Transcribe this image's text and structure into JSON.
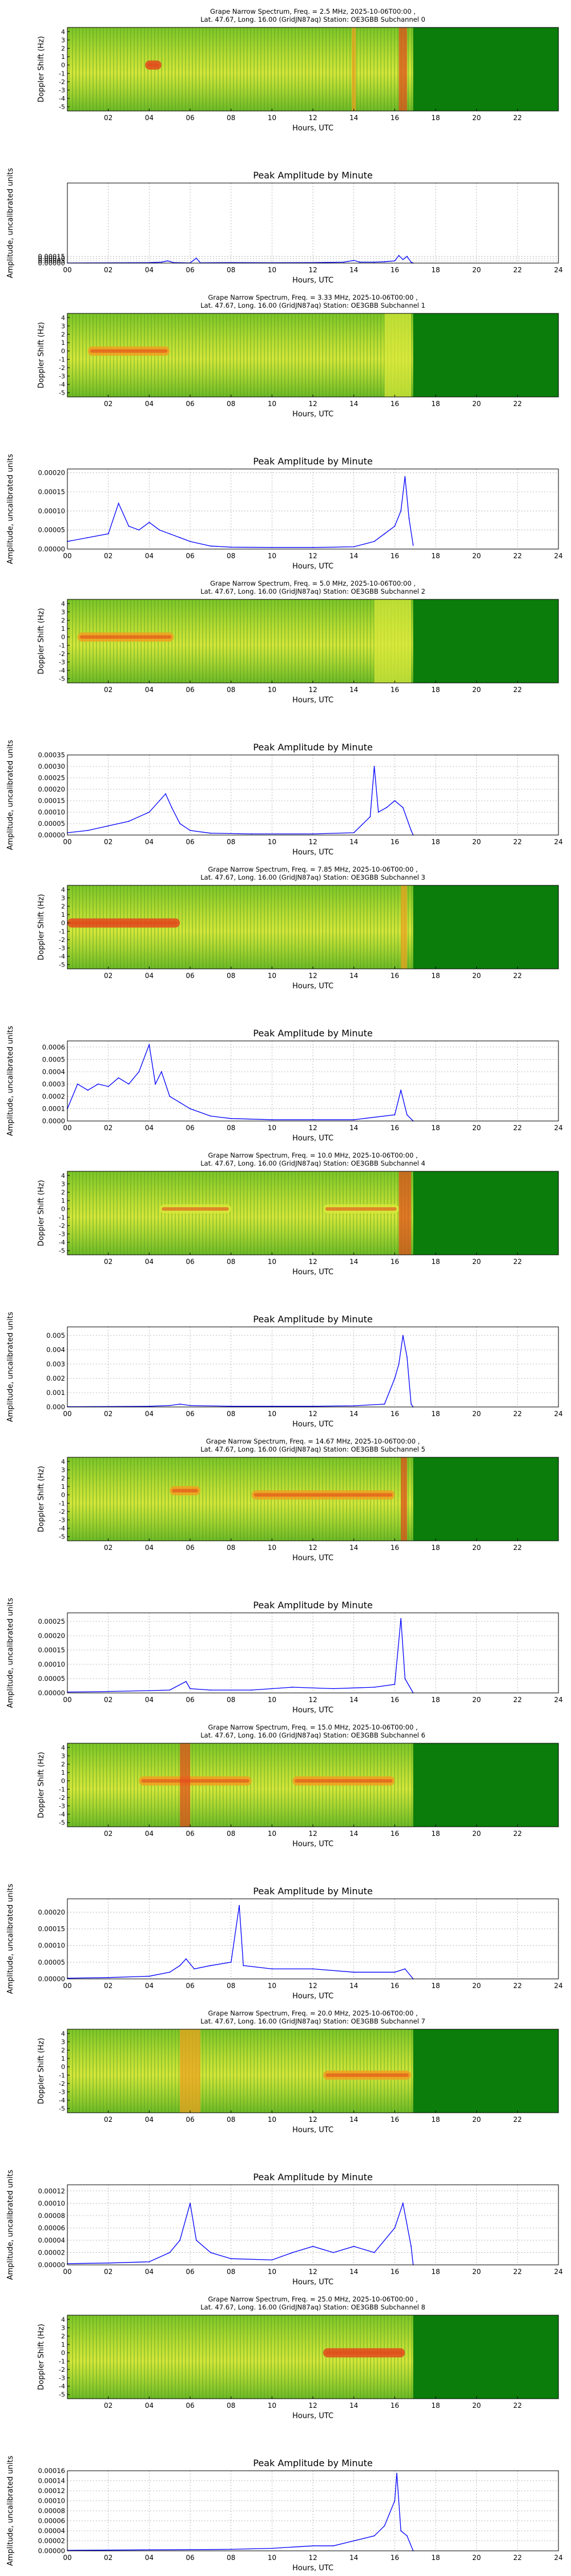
{
  "spectrum_common": {
    "ylabel": "Doppler Shift (Hz)",
    "xlabel": "Hours, UTC",
    "yticks": [
      "4",
      "3",
      "2",
      "1",
      "0",
      "-1",
      "-2",
      "-3",
      "-4",
      "-5"
    ],
    "xticks": [
      "02",
      "04",
      "06",
      "08",
      "10",
      "12",
      "14",
      "16",
      "18",
      "20",
      "22"
    ],
    "colors": {
      "background": "#0a7d0a",
      "low": "#6fbf2a",
      "mid": "#d9e83a",
      "high": "#f0a020",
      "peak": "#e34a1c"
    }
  },
  "amplitude_common": {
    "title": "Peak Amplitude by Minute",
    "ylabel": "Amplitude, uncalibrated units",
    "xlabel": "Hours, UTC",
    "xticks": [
      "00",
      "02",
      "04",
      "06",
      "08",
      "10",
      "12",
      "14",
      "16",
      "18",
      "20",
      "22",
      "24"
    ],
    "line_color": "#0000ff",
    "grid": true
  },
  "chart_data": [
    {
      "type": "heatmap",
      "title_line1": "Grape Narrow Spectrum, Freq. = 2.5 MHz, 2025-10-06T00:00 ,",
      "title_line2": "Lat.  47.67, Long.  16.00 (GridJN87aq) Station: OE3GBB Subchannel 0",
      "data_end_hour": 16.9,
      "features": [
        {
          "hour_start": 3.8,
          "hour_end": 4.6,
          "doppler": 0,
          "intensity": "peak"
        },
        {
          "hour_start": 13.9,
          "hour_end": 14.1,
          "doppler": "all",
          "intensity": "high"
        },
        {
          "hour_start": 16.2,
          "hour_end": 16.6,
          "doppler": "all",
          "intensity": "peak"
        }
      ]
    },
    {
      "type": "line",
      "ylim": [
        0,
        0.0018
      ],
      "yticks": [
        "0.00000",
        "0.00005",
        "0.00010",
        "0.00015"
      ],
      "ytick_values": [
        0,
        5e-05,
        0.0001,
        0.00015
      ],
      "points": [
        [
          0,
          3e-06
        ],
        [
          1,
          4e-06
        ],
        [
          2,
          6e-06
        ],
        [
          3,
          8e-06
        ],
        [
          4,
          1e-05
        ],
        [
          4.6,
          2e-05
        ],
        [
          4.9,
          5e-05
        ],
        [
          5.2,
          1e-05
        ],
        [
          6,
          4e-06
        ],
        [
          6.3,
          0.00011
        ],
        [
          6.5,
          6e-06
        ],
        [
          8,
          1e-05
        ],
        [
          10,
          8e-06
        ],
        [
          12,
          1e-05
        ],
        [
          13.5,
          2e-05
        ],
        [
          14,
          6e-05
        ],
        [
          14.3,
          2e-05
        ],
        [
          15,
          2e-05
        ],
        [
          15.5,
          3e-05
        ],
        [
          16,
          5e-05
        ],
        [
          16.2,
          0.00017
        ],
        [
          16.4,
          8e-05
        ],
        [
          16.6,
          0.00015
        ],
        [
          16.8,
          2e-05
        ],
        [
          16.9,
          0
        ]
      ]
    },
    {
      "type": "heatmap",
      "title_line1": "Grape Narrow Spectrum, Freq. = 3.33 MHz, 2025-10-06T00:00 ,",
      "title_line2": "Lat.  47.67, Long.  16.00 (GridJN87aq) Station: OE3GBB Subchannel 1",
      "data_end_hour": 16.9,
      "features": [
        {
          "hour_start": 1.0,
          "hour_end": 5.0,
          "doppler": 0,
          "intensity": "high"
        },
        {
          "hour_start": 15.5,
          "hour_end": 16.8,
          "doppler": "all",
          "intensity": "mid"
        }
      ]
    },
    {
      "type": "line",
      "ylim": [
        0,
        0.00021
      ],
      "yticks": [
        "0.00000",
        "0.00005",
        "0.00010",
        "0.00015",
        "0.00020"
      ],
      "ytick_values": [
        0,
        5e-05,
        0.0001,
        0.00015,
        0.0002
      ],
      "points": [
        [
          0,
          2e-05
        ],
        [
          1,
          3e-05
        ],
        [
          2,
          4e-05
        ],
        [
          2.5,
          0.00012
        ],
        [
          3,
          6e-05
        ],
        [
          3.5,
          5e-05
        ],
        [
          4,
          7e-05
        ],
        [
          4.5,
          5e-05
        ],
        [
          5,
          4e-05
        ],
        [
          5.5,
          3e-05
        ],
        [
          6,
          2e-05
        ],
        [
          7,
          8e-06
        ],
        [
          8,
          5e-06
        ],
        [
          10,
          4e-06
        ],
        [
          12,
          4e-06
        ],
        [
          14,
          6e-06
        ],
        [
          15,
          2e-05
        ],
        [
          15.5,
          4e-05
        ],
        [
          16,
          6e-05
        ],
        [
          16.3,
          0.0001
        ],
        [
          16.5,
          0.00019
        ],
        [
          16.7,
          8e-05
        ],
        [
          16.9,
          1e-05
        ]
      ]
    },
    {
      "type": "heatmap",
      "title_line1": "Grape Narrow Spectrum, Freq. = 5.0 MHz, 2025-10-06T00:00 ,",
      "title_line2": "Lat.  47.67, Long.  16.00 (GridJN87aq) Station: OE3GBB Subchannel 2",
      "data_end_hour": 16.9,
      "features": [
        {
          "hour_start": 0.5,
          "hour_end": 5.2,
          "doppler": 0,
          "intensity": "high"
        },
        {
          "hour_start": 15.0,
          "hour_end": 16.8,
          "doppler": "all",
          "intensity": "mid"
        }
      ]
    },
    {
      "type": "line",
      "ylim": [
        0,
        0.00035
      ],
      "yticks": [
        "0.00000",
        "0.00005",
        "0.00010",
        "0.00015",
        "0.00020",
        "0.00025",
        "0.00030",
        "0.00035"
      ],
      "ytick_values": [
        0,
        5e-05,
        0.0001,
        0.00015,
        0.0002,
        0.00025,
        0.0003,
        0.00035
      ],
      "points": [
        [
          0,
          1e-05
        ],
        [
          1,
          2e-05
        ],
        [
          2,
          4e-05
        ],
        [
          3,
          6e-05
        ],
        [
          4,
          0.0001
        ],
        [
          4.5,
          0.00015
        ],
        [
          4.8,
          0.00018
        ],
        [
          5.1,
          0.00012
        ],
        [
          5.5,
          5e-05
        ],
        [
          6,
          2e-05
        ],
        [
          7,
          8e-06
        ],
        [
          9,
          5e-06
        ],
        [
          12,
          5e-06
        ],
        [
          14,
          1e-05
        ],
        [
          14.8,
          8e-05
        ],
        [
          15,
          0.0003
        ],
        [
          15.2,
          0.0001
        ],
        [
          15.6,
          0.00012
        ],
        [
          16,
          0.00015
        ],
        [
          16.4,
          0.00012
        ],
        [
          16.8,
          2e-05
        ],
        [
          16.9,
          0
        ]
      ]
    },
    {
      "type": "heatmap",
      "title_line1": "Grape Narrow Spectrum, Freq. = 7.85 MHz, 2025-10-06T00:00 ,",
      "title_line2": "Lat.  47.67, Long.  16.00 (GridJN87aq) Station: OE3GBB Subchannel 3",
      "data_end_hour": 16.9,
      "features": [
        {
          "hour_start": 0.0,
          "hour_end": 5.5,
          "doppler": 0,
          "intensity": "peak"
        },
        {
          "hour_start": 16.3,
          "hour_end": 16.6,
          "doppler": "all",
          "intensity": "high"
        }
      ]
    },
    {
      "type": "line",
      "ylim": [
        0,
        0.00065
      ],
      "yticks": [
        "0.0000",
        "0.0001",
        "0.0002",
        "0.0003",
        "0.0004",
        "0.0005",
        "0.0006"
      ],
      "ytick_values": [
        0,
        0.0001,
        0.0002,
        0.0003,
        0.0004,
        0.0005,
        0.0006
      ],
      "points": [
        [
          0,
          0.0001
        ],
        [
          0.5,
          0.0003
        ],
        [
          1,
          0.00025
        ],
        [
          1.5,
          0.0003
        ],
        [
          2,
          0.00028
        ],
        [
          2.5,
          0.00035
        ],
        [
          3,
          0.0003
        ],
        [
          3.5,
          0.0004
        ],
        [
          4,
          0.00062
        ],
        [
          4.3,
          0.0003
        ],
        [
          4.6,
          0.0004
        ],
        [
          5,
          0.0002
        ],
        [
          5.5,
          0.00015
        ],
        [
          6,
          0.0001
        ],
        [
          7,
          4e-05
        ],
        [
          8,
          2e-05
        ],
        [
          10,
          1e-05
        ],
        [
          12,
          1e-05
        ],
        [
          14,
          1e-05
        ],
        [
          16,
          5e-05
        ],
        [
          16.3,
          0.00025
        ],
        [
          16.6,
          5e-05
        ],
        [
          16.9,
          0
        ]
      ]
    },
    {
      "type": "heatmap",
      "title_line1": "Grape Narrow Spectrum, Freq. = 10.0 MHz, 2025-10-06T00:00 ,",
      "title_line2": "Lat.  47.67, Long.  16.00 (GridJN87aq) Station: OE3GBB Subchannel 4",
      "data_end_hour": 16.9,
      "features": [
        {
          "hour_start": 4.5,
          "hour_end": 8.0,
          "doppler": 0,
          "intensity": "mid"
        },
        {
          "hour_start": 12.5,
          "hour_end": 16.2,
          "doppler": 0,
          "intensity": "mid"
        },
        {
          "hour_start": 16.2,
          "hour_end": 16.8,
          "doppler": "all",
          "intensity": "peak"
        }
      ]
    },
    {
      "type": "line",
      "ylim": [
        0,
        0.0056
      ],
      "yticks": [
        "0.000",
        "0.001",
        "0.002",
        "0.003",
        "0.004",
        "0.005"
      ],
      "ytick_values": [
        0,
        0.001,
        0.002,
        0.003,
        0.004,
        0.005
      ],
      "points": [
        [
          0,
          2e-05
        ],
        [
          2,
          3e-05
        ],
        [
          4,
          5e-05
        ],
        [
          5,
          0.0001
        ],
        [
          5.5,
          0.0002
        ],
        [
          6,
          0.0001
        ],
        [
          8,
          5e-05
        ],
        [
          10,
          5e-05
        ],
        [
          12,
          5e-05
        ],
        [
          14,
          8e-05
        ],
        [
          15.5,
          0.0002
        ],
        [
          16,
          0.002
        ],
        [
          16.2,
          0.003
        ],
        [
          16.4,
          0.005
        ],
        [
          16.6,
          0.0035
        ],
        [
          16.8,
          0.0002
        ],
        [
          16.9,
          0
        ]
      ]
    },
    {
      "type": "heatmap",
      "title_line1": "Grape Narrow Spectrum, Freq. = 14.67 MHz, 2025-10-06T00:00 ,",
      "title_line2": "Lat.  47.67, Long.  16.00 (GridJN87aq) Station: OE3GBB Subchannel 5",
      "data_end_hour": 16.9,
      "features": [
        {
          "hour_start": 5.0,
          "hour_end": 6.5,
          "doppler": 0.5,
          "intensity": "high"
        },
        {
          "hour_start": 9.0,
          "hour_end": 16.0,
          "doppler": 0,
          "intensity": "high"
        },
        {
          "hour_start": 16.3,
          "hour_end": 16.6,
          "doppler": "all",
          "intensity": "peak"
        }
      ]
    },
    {
      "type": "line",
      "ylim": [
        0,
        0.00028
      ],
      "yticks": [
        "0.00000",
        "0.00005",
        "0.00010",
        "0.00015",
        "0.00020",
        "0.00025"
      ],
      "ytick_values": [
        0,
        5e-05,
        0.0001,
        0.00015,
        0.0002,
        0.00025
      ],
      "points": [
        [
          0,
          3e-06
        ],
        [
          2,
          5e-06
        ],
        [
          4,
          8e-06
        ],
        [
          5,
          1e-05
        ],
        [
          5.8,
          4e-05
        ],
        [
          6,
          1.5e-05
        ],
        [
          7,
          1e-05
        ],
        [
          9,
          1e-05
        ],
        [
          11,
          2e-05
        ],
        [
          13,
          1.5e-05
        ],
        [
          15,
          2e-05
        ],
        [
          16,
          3e-05
        ],
        [
          16.3,
          0.00026
        ],
        [
          16.5,
          5e-05
        ],
        [
          16.9,
          0
        ]
      ]
    },
    {
      "type": "heatmap",
      "title_line1": "Grape Narrow Spectrum, Freq. = 15.0 MHz, 2025-10-06T00:00 ,",
      "title_line2": "Lat.  47.67, Long.  16.00 (GridJN87aq) Station: OE3GBB Subchannel 6",
      "data_end_hour": 16.9,
      "features": [
        {
          "hour_start": 3.5,
          "hour_end": 9.0,
          "doppler": 0,
          "intensity": "high"
        },
        {
          "hour_start": 5.5,
          "hour_end": 6.0,
          "doppler": "all",
          "intensity": "peak"
        },
        {
          "hour_start": 11.0,
          "hour_end": 16.0,
          "doppler": 0,
          "intensity": "high"
        }
      ]
    },
    {
      "type": "line",
      "ylim": [
        0,
        0.00024
      ],
      "yticks": [
        "0.00000",
        "0.00005",
        "0.00010",
        "0.00015",
        "0.00020"
      ],
      "ytick_values": [
        0,
        5e-05,
        0.0001,
        0.00015,
        0.0002
      ],
      "points": [
        [
          0,
          2e-06
        ],
        [
          2,
          4e-06
        ],
        [
          4,
          8e-06
        ],
        [
          5,
          2e-05
        ],
        [
          5.5,
          4e-05
        ],
        [
          5.8,
          6e-05
        ],
        [
          6.2,
          3e-05
        ],
        [
          7,
          4e-05
        ],
        [
          8,
          5e-05
        ],
        [
          8.4,
          0.00022
        ],
        [
          8.6,
          4e-05
        ],
        [
          10,
          3e-05
        ],
        [
          12,
          3e-05
        ],
        [
          14,
          2e-05
        ],
        [
          16,
          2e-05
        ],
        [
          16.5,
          3e-05
        ],
        [
          16.9,
          0
        ]
      ]
    },
    {
      "type": "heatmap",
      "title_line1": "Grape Narrow Spectrum, Freq. = 20.0 MHz, 2025-10-06T00:00 ,",
      "title_line2": "Lat.  47.67, Long.  16.00 (GridJN87aq) Station: OE3GBB Subchannel 7",
      "data_end_hour": 16.9,
      "features": [
        {
          "hour_start": 5.5,
          "hour_end": 6.5,
          "doppler": "all",
          "intensity": "high"
        },
        {
          "hour_start": 12.5,
          "hour_end": 16.8,
          "doppler": -1,
          "intensity": "high"
        }
      ]
    },
    {
      "type": "line",
      "ylim": [
        0,
        0.00013
      ],
      "yticks": [
        "0.00000",
        "0.00002",
        "0.00004",
        "0.00006",
        "0.00008",
        "0.00010",
        "0.00012"
      ],
      "ytick_values": [
        0,
        2e-05,
        4e-05,
        6e-05,
        8e-05,
        0.0001,
        0.00012
      ],
      "points": [
        [
          0,
          2e-06
        ],
        [
          2,
          3e-06
        ],
        [
          4,
          5e-06
        ],
        [
          5,
          2e-05
        ],
        [
          5.5,
          4e-05
        ],
        [
          6,
          0.0001
        ],
        [
          6.3,
          4e-05
        ],
        [
          7,
          2e-05
        ],
        [
          8,
          1e-05
        ],
        [
          10,
          8e-06
        ],
        [
          11,
          2e-05
        ],
        [
          12,
          3e-05
        ],
        [
          13,
          2e-05
        ],
        [
          14,
          3e-05
        ],
        [
          15,
          2e-05
        ],
        [
          16,
          6e-05
        ],
        [
          16.4,
          0.0001
        ],
        [
          16.8,
          3e-05
        ],
        [
          16.9,
          0
        ]
      ]
    },
    {
      "type": "heatmap",
      "title_line1": "Grape Narrow Spectrum, Freq. = 25.0 MHz, 2025-10-06T00:00 ,",
      "title_line2": "Lat.  47.67, Long.  16.00 (GridJN87aq) Station: OE3GBB Subchannel 8",
      "data_end_hour": 16.9,
      "features": [
        {
          "hour_start": 12.5,
          "hour_end": 16.5,
          "doppler": 0,
          "intensity": "peak"
        }
      ]
    },
    {
      "type": "line",
      "ylim": [
        0,
        0.00016
      ],
      "yticks": [
        "0.00000",
        "0.00002",
        "0.00004",
        "0.00006",
        "0.00008",
        "0.00010",
        "0.00012",
        "0.00014",
        "0.00016"
      ],
      "ytick_values": [
        0,
        2e-05,
        4e-05,
        6e-05,
        8e-05,
        0.0001,
        0.00012,
        0.00014,
        0.00016
      ],
      "points": [
        [
          0,
          1e-06
        ],
        [
          4,
          2e-06
        ],
        [
          8,
          3e-06
        ],
        [
          10,
          5e-06
        ],
        [
          12,
          1e-05
        ],
        [
          13,
          1e-05
        ],
        [
          14,
          2e-05
        ],
        [
          15,
          3e-05
        ],
        [
          15.5,
          5e-05
        ],
        [
          16,
          0.0001
        ],
        [
          16.1,
          0.000155
        ],
        [
          16.3,
          4e-05
        ],
        [
          16.6,
          3e-05
        ],
        [
          16.9,
          0
        ]
      ]
    }
  ]
}
